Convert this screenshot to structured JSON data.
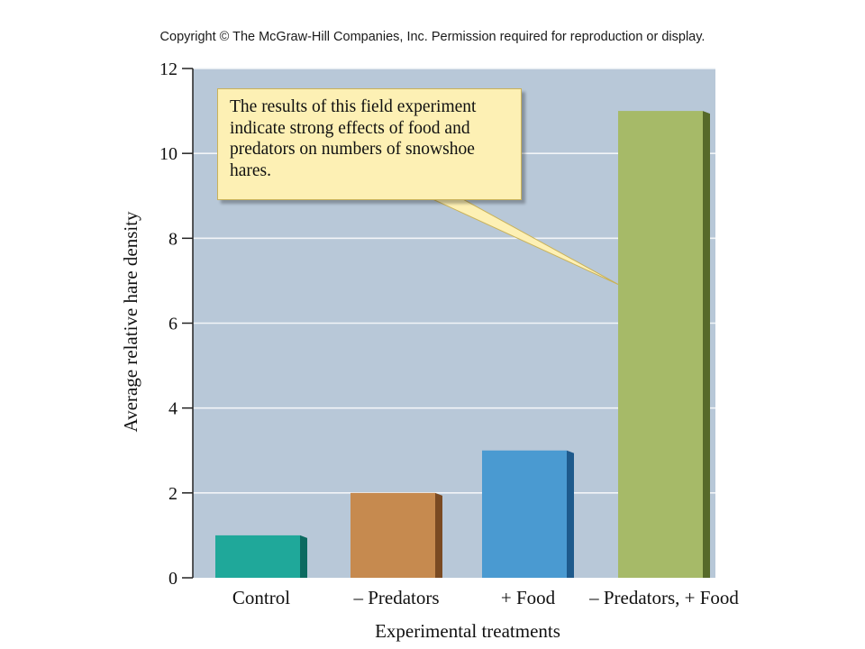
{
  "header": {
    "copyright": "Copyright © The McGraw-Hill Companies, Inc. Permission required for reproduction or display."
  },
  "chart_data": {
    "type": "bar",
    "categories": [
      "Control",
      "– Predators",
      "+ Food",
      "– Predators, + Food"
    ],
    "values": [
      1,
      2,
      3,
      11
    ],
    "xlabel": "Experimental treatments",
    "ylabel": "Average relative hare density",
    "ylim": [
      0,
      12
    ],
    "yticks": [
      0,
      2,
      4,
      6,
      8,
      10,
      12
    ],
    "grid": true,
    "colors": [
      "#1fa89a",
      "#c68a4f",
      "#4a9ad1",
      "#a6ba68"
    ],
    "side_colors": [
      "#0c6a60",
      "#7a4a22",
      "#1e5a8c",
      "#566a2a"
    ],
    "background_color": "#b8c8d8",
    "annotation": {
      "text": "The results of this field experiment indicate strong effects of food and predators on numbers of snowshoe hares.",
      "points_to": "– Predators, + Food"
    }
  }
}
